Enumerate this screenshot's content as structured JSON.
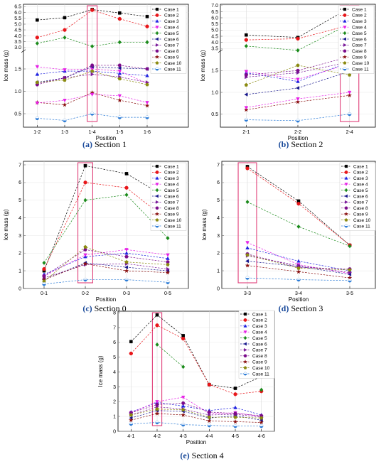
{
  "styles": {
    "Case 1": {
      "color": "#000000",
      "marker": "square"
    },
    "Case 2": {
      "color": "#e8161a",
      "marker": "circle"
    },
    "Case 3": {
      "color": "#1f22e0",
      "marker": "triangle-up"
    },
    "Case 4": {
      "color": "#e620e6",
      "marker": "triangle-down"
    },
    "Case 5": {
      "color": "#1a8a1a",
      "marker": "diamond"
    },
    "Case 6": {
      "color": "#16168c",
      "marker": "triangle-left"
    },
    "Case 7": {
      "color": "#7a1a9a",
      "marker": "triangle-right"
    },
    "Case 8": {
      "color": "#7a0a8a",
      "marker": "hexagon"
    },
    "Case 9": {
      "color": "#8a1010",
      "marker": "star"
    },
    "Case 10": {
      "color": "#8a8a10",
      "marker": "pentagon"
    },
    "Case 11": {
      "color": "#2b7bd6",
      "marker": "circle-half"
    }
  },
  "highlight_color": "#e0407a",
  "chart_data": [
    {
      "type": "line",
      "caption_label": "(a)",
      "caption_text": "Section 1",
      "xlabel": "Position",
      "ylabel": "Ice mass (g)",
      "categories": [
        "1-2",
        "1-3",
        "1-4",
        "1-5",
        "1-6"
      ],
      "x_slots": 6,
      "highlight_category": "1-4",
      "y_scale": "broken",
      "y_segments": [
        {
          "range": [
            0.2,
            1.9
          ],
          "ticks": [
            0.5,
            1.0,
            1.5
          ],
          "labels": [
            "0.5",
            "1.0",
            "1.5"
          ]
        },
        {
          "range": [
            2.7,
            6.7
          ],
          "ticks": [
            3.0,
            3.5,
            4.0,
            4.5,
            5.0,
            5.5,
            6.0,
            6.5
          ],
          "labels": [
            "3.0",
            "3.5",
            "4.0",
            "4.5",
            "5.0",
            "5.5",
            "6.0",
            "6.5"
          ]
        }
      ],
      "series": [
        {
          "name": "Case 1",
          "values": [
            5.35,
            5.55,
            6.25,
            5.95,
            5.65
          ]
        },
        {
          "name": "Case 2",
          "values": [
            3.85,
            4.5,
            6.2,
            5.45,
            4.8
          ]
        },
        {
          "name": "Case 3",
          "values": [
            1.38,
            1.45,
            1.45,
            1.4,
            1.35
          ]
        },
        {
          "name": "Case 4",
          "values": [
            1.55,
            1.48,
            1.5,
            1.45,
            1.18
          ]
        },
        {
          "name": "Case 5",
          "values": [
            3.35,
            3.85,
            3.1,
            3.45,
            3.45
          ]
        },
        {
          "name": "Case 6",
          "values": [
            1.2,
            1.3,
            1.55,
            1.52,
            1.5
          ]
        },
        {
          "name": "Case 7",
          "values": [
            1.18,
            1.3,
            1.38,
            1.32,
            1.2
          ]
        },
        {
          "name": "Case 8",
          "values": [
            1.15,
            1.3,
            1.58,
            1.58,
            1.5
          ]
        },
        {
          "name": "Case 9",
          "values": [
            0.75,
            0.7,
            0.97,
            0.8,
            0.68
          ]
        },
        {
          "name": "Case 10",
          "values": [
            1.2,
            1.25,
            1.45,
            1.28,
            1.15
          ]
        },
        {
          "name": "Case 11",
          "values": [
            0.4,
            0.35,
            0.5,
            0.42,
            0.42
          ]
        },
        {
          "name": "Case 4",
          "values": [
            0.74,
            0.8,
            0.93,
            0.9,
            0.75
          ]
        }
      ]
    },
    {
      "type": "line",
      "caption_label": "(b)",
      "caption_text": "Section 2",
      "xlabel": "Position",
      "ylabel": "Ice mass (g)",
      "categories": [
        "2-1",
        "2-2",
        "2-4"
      ],
      "x_slots": 3,
      "highlight_category": "2-4",
      "y_scale": "broken",
      "y_segments": [
        {
          "range": [
            0.2,
            1.95
          ],
          "ticks": [
            0.5,
            1.0,
            1.5
          ],
          "labels": [
            "0.5",
            "1.0",
            "1.5"
          ]
        },
        {
          "range": [
            3.3,
            7.1
          ],
          "ticks": [
            3.5,
            4.0,
            4.5,
            5.0,
            5.5,
            6.0,
            6.5,
            7.0
          ],
          "labels": [
            "3.5",
            "4.0",
            "4.5",
            "5.0",
            "5.5",
            "6.0",
            "6.5",
            "7.0"
          ]
        }
      ],
      "series": [
        {
          "name": "Case 1",
          "values": [
            4.6,
            4.4,
            6.8
          ]
        },
        {
          "name": "Case 2",
          "values": [
            4.2,
            4.3,
            5.4
          ]
        },
        {
          "name": "Case 3",
          "values": [
            1.45,
            1.25,
            1.7
          ]
        },
        {
          "name": "Case 4",
          "values": [
            1.48,
            1.3,
            1.65
          ]
        },
        {
          "name": "Case 5",
          "values": [
            3.7,
            3.35,
            5.5
          ]
        },
        {
          "name": "Case 6",
          "values": [
            0.95,
            1.1,
            1.48
          ]
        },
        {
          "name": "Case 7",
          "values": [
            1.35,
            1.45,
            1.7
          ]
        },
        {
          "name": "Case 8",
          "values": [
            1.4,
            1.5,
            1.82
          ]
        },
        {
          "name": "Case 9",
          "values": [
            0.6,
            0.78,
            0.93
          ]
        },
        {
          "name": "Case 10",
          "values": [
            1.17,
            1.62,
            1.4
          ]
        },
        {
          "name": "Case 11",
          "values": [
            0.37,
            0.35,
            0.5
          ]
        },
        {
          "name": "Case 4",
          "values": [
            0.65,
            0.85,
            1.0
          ]
        }
      ]
    },
    {
      "type": "line",
      "caption_label": "(c)",
      "caption_text": "Section 0",
      "xlabel": "Position",
      "ylabel": "Ice mass (g)",
      "categories": [
        "0-1",
        "0-2",
        "0-3",
        "0-5"
      ],
      "x_slots": 4,
      "highlight_category": "0-2",
      "y_scale": "linear",
      "ylim": [
        0,
        7.2
      ],
      "yticks": [
        0,
        1,
        2,
        3,
        4,
        5,
        6,
        7
      ],
      "series": [
        {
          "name": "Case 1",
          "values": [
            1.0,
            6.95,
            6.5,
            5.1
          ]
        },
        {
          "name": "Case 2",
          "values": [
            1.1,
            6.0,
            5.7,
            3.85
          ]
        },
        {
          "name": "Case 3",
          "values": [
            0.8,
            1.8,
            2.0,
            1.7
          ]
        },
        {
          "name": "Case 4",
          "values": [
            0.7,
            1.9,
            2.2,
            1.9
          ]
        },
        {
          "name": "Case 5",
          "values": [
            1.45,
            5.0,
            5.3,
            2.85
          ]
        },
        {
          "name": "Case 6",
          "values": [
            0.5,
            1.45,
            1.2,
            1.0
          ]
        },
        {
          "name": "Case 7",
          "values": [
            0.6,
            1.35,
            1.4,
            1.1
          ]
        },
        {
          "name": "Case 8",
          "values": [
            0.7,
            2.2,
            1.8,
            1.5
          ]
        },
        {
          "name": "Case 9",
          "values": [
            0.5,
            1.4,
            1.0,
            0.9
          ]
        },
        {
          "name": "Case 10",
          "values": [
            0.4,
            2.35,
            1.5,
            1.35
          ]
        },
        {
          "name": "Case 11",
          "values": [
            0.25,
            0.5,
            0.5,
            0.35
          ]
        }
      ]
    },
    {
      "type": "line",
      "caption_label": "(d)",
      "caption_text": "Section 3",
      "xlabel": "Position",
      "ylabel": "Ice mass (g)",
      "categories": [
        "3-3",
        "3-4",
        "3-5"
      ],
      "x_slots": 3,
      "highlight_category": "3-3",
      "y_scale": "linear",
      "ylim": [
        0,
        7.2
      ],
      "yticks": [
        0,
        1,
        2,
        3,
        4,
        5,
        6,
        7
      ],
      "series": [
        {
          "name": "Case 1",
          "values": [
            6.9,
            4.95,
            2.45
          ]
        },
        {
          "name": "Case 2",
          "values": [
            6.8,
            4.8,
            2.45
          ]
        },
        {
          "name": "Case 3",
          "values": [
            2.3,
            1.55,
            1.0
          ]
        },
        {
          "name": "Case 4",
          "values": [
            2.6,
            1.35,
            0.85
          ]
        },
        {
          "name": "Case 5",
          "values": [
            4.9,
            3.5,
            2.4
          ]
        },
        {
          "name": "Case 6",
          "values": [
            1.55,
            1.25,
            0.8
          ]
        },
        {
          "name": "Case 7",
          "values": [
            1.85,
            1.3,
            0.9
          ]
        },
        {
          "name": "Case 8",
          "values": [
            1.95,
            1.2,
            1.1
          ]
        },
        {
          "name": "Case 9",
          "values": [
            1.3,
            0.95,
            0.6
          ]
        },
        {
          "name": "Case 10",
          "values": [
            1.9,
            1.15,
            1.05
          ]
        },
        {
          "name": "Case 11",
          "values": [
            0.6,
            0.5,
            0.45
          ]
        }
      ]
    },
    {
      "type": "line",
      "caption_label": "(e)",
      "caption_text": "Section 4",
      "xlabel": "Position",
      "ylabel": "Ice mass (g)",
      "categories": [
        "4-1",
        "4-2",
        "4-3",
        "4-4",
        "4-5",
        "4-6"
      ],
      "x_slots": 6,
      "highlight_category": "4-2",
      "y_scale": "linear",
      "ylim": [
        0,
        8.1
      ],
      "yticks": [
        0,
        1,
        2,
        3,
        4,
        5,
        6,
        7,
        8
      ],
      "series": [
        {
          "name": "Case 1",
          "values": [
            6.05,
            7.85,
            6.45,
            3.15,
            2.9,
            3.7
          ]
        },
        {
          "name": "Case 2",
          "values": [
            5.25,
            7.15,
            6.25,
            3.15,
            2.5,
            2.7
          ]
        },
        {
          "name": "Case 3",
          "values": [
            1.3,
            1.95,
            1.7,
            1.4,
            1.6,
            1.1
          ]
        },
        {
          "name": "Case 4",
          "values": [
            1.25,
            2.0,
            2.3,
            1.2,
            1.25,
            1.0
          ]
        },
        {
          "name": "Case 5",
          "values": [
            null,
            5.85,
            4.35,
            null,
            null,
            2.8
          ]
        },
        {
          "name": "Case 6",
          "values": [
            0.9,
            1.4,
            1.35,
            0.9,
            1.05,
            0.75
          ]
        },
        {
          "name": "Case 7",
          "values": [
            1.1,
            1.65,
            1.5,
            1.1,
            1.15,
            0.95
          ]
        },
        {
          "name": "Case 8",
          "values": [
            1.25,
            1.8,
            1.9,
            1.3,
            1.2,
            1.05
          ]
        },
        {
          "name": "Case 9",
          "values": [
            0.75,
            1.2,
            1.1,
            0.7,
            0.65,
            0.6
          ]
        },
        {
          "name": "Case 10",
          "values": [
            1.1,
            1.5,
            1.45,
            0.95,
            0.95,
            0.9
          ]
        },
        {
          "name": "Case 11",
          "values": [
            0.5,
            0.6,
            0.45,
            0.4,
            0.35,
            0.35
          ]
        }
      ]
    }
  ]
}
